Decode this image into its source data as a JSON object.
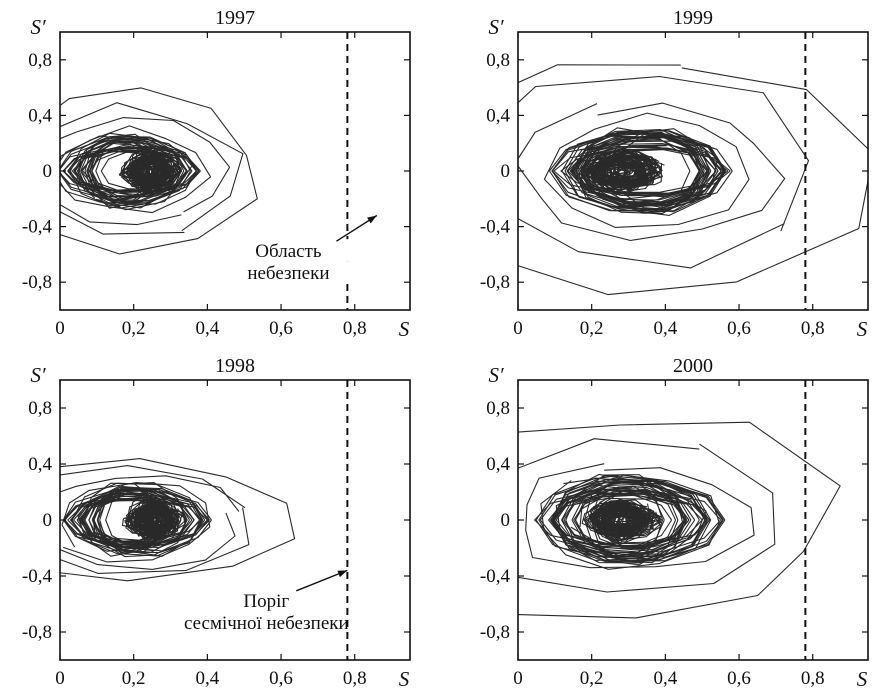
{
  "chart_data": [
    {
      "type": "line",
      "title": "1997",
      "xlabel": "S",
      "ylabel": "S′",
      "xlim": [
        0,
        0.95
      ],
      "ylim": [
        -1.0,
        1.0
      ],
      "xticks": [
        "0",
        "0,2",
        "0,4",
        "0,6",
        "0,8"
      ],
      "yticks": [
        "0,8",
        "0,4",
        "0",
        "-0,4",
        "-0,8"
      ],
      "threshold_x": 0.78,
      "annotation": {
        "lines": [
          "Область",
          "небезпеки"
        ],
        "arrow_to": [
          0.86,
          -0.32
        ]
      },
      "series": [
        {
          "kind": "core",
          "cx": 0.24,
          "cy": 0.0,
          "rx": 0.06,
          "ry": 0.13
        },
        {
          "kind": "loops",
          "cx": 0.19,
          "cy": 0.0,
          "rx": [
            0.12,
            0.16,
            0.2,
            0.26,
            0.3,
            0.36
          ],
          "ry": [
            0.18,
            0.25,
            0.3,
            0.38,
            0.45,
            0.55
          ]
        }
      ]
    },
    {
      "type": "line",
      "title": "1999",
      "xlabel": "S",
      "ylabel": "S′",
      "xlim": [
        0,
        0.95
      ],
      "ylim": [
        -1.0,
        1.0
      ],
      "xticks": [
        "0",
        "0,2",
        "0,4",
        "0,6",
        "0,8"
      ],
      "yticks": [
        "0,8",
        "0,4",
        "0",
        "-0,4",
        "-0,8"
      ],
      "threshold_x": 0.78,
      "series": [
        {
          "kind": "core",
          "cx": 0.28,
          "cy": 0.0,
          "rx": 0.09,
          "ry": 0.12
        },
        {
          "kind": "loops",
          "cx": 0.35,
          "cy": 0.0,
          "rx": [
            0.15,
            0.2,
            0.28,
            0.35,
            0.48,
            0.6
          ],
          "ry": [
            0.2,
            0.28,
            0.38,
            0.48,
            0.7,
            0.82
          ]
        }
      ]
    },
    {
      "type": "line",
      "title": "1998",
      "xlabel": "S",
      "ylabel": "S′",
      "xlim": [
        0,
        0.95
      ],
      "ylim": [
        -1.0,
        1.0
      ],
      "xticks": [
        "0",
        "0,2",
        "0,4",
        "0,6",
        "0,8"
      ],
      "yticks": [
        "0,8",
        "0,4",
        "0",
        "-0,4",
        "-0,8"
      ],
      "threshold_x": 0.78,
      "annotation": {
        "lines": [
          "Поріг",
          "сесмічної небезпеки"
        ],
        "arrow_to": [
          0.78,
          -0.36
        ]
      },
      "series": [
        {
          "kind": "core",
          "cx": 0.25,
          "cy": 0.0,
          "rx": 0.06,
          "ry": 0.12
        },
        {
          "kind": "loops",
          "cx": 0.2,
          "cy": 0.0,
          "rx": [
            0.12,
            0.16,
            0.22,
            0.28,
            0.34,
            0.45
          ],
          "ry": [
            0.17,
            0.22,
            0.28,
            0.34,
            0.38,
            0.42
          ]
        }
      ]
    },
    {
      "type": "line",
      "title": "2000",
      "xlabel": "S",
      "ylabel": "S′",
      "xlim": [
        0,
        0.95
      ],
      "ylim": [
        -1.0,
        1.0
      ],
      "xticks": [
        "0",
        "0,2",
        "0,4",
        "0,6",
        "0,8"
      ],
      "yticks": [
        "0,8",
        "0,4",
        "0",
        "-0,4",
        "-0,8"
      ],
      "threshold_x": 0.78,
      "series": [
        {
          "kind": "core",
          "cx": 0.28,
          "cy": 0.0,
          "rx": 0.08,
          "ry": 0.12
        },
        {
          "kind": "loops",
          "cx": 0.3,
          "cy": 0.0,
          "rx": [
            0.15,
            0.2,
            0.26,
            0.32,
            0.42,
            0.55
          ],
          "ry": [
            0.2,
            0.26,
            0.32,
            0.38,
            0.55,
            0.75
          ]
        }
      ]
    }
  ]
}
